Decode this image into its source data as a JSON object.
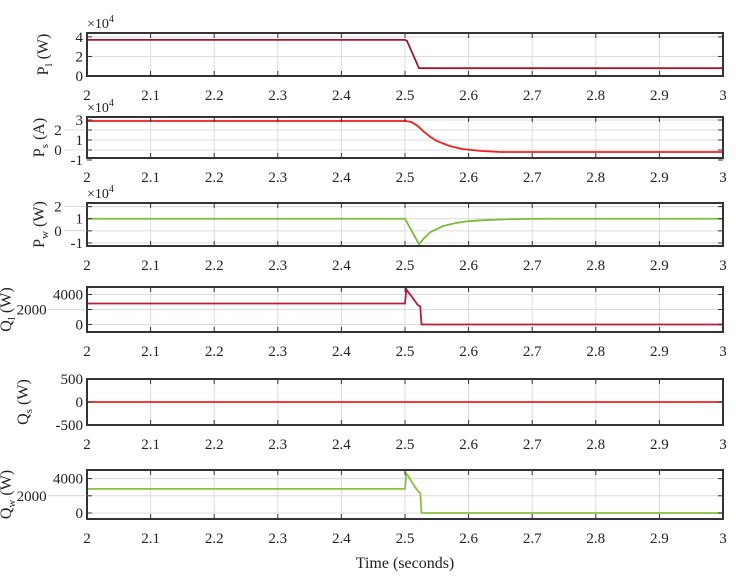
{
  "chart_data": [
    {
      "type": "line",
      "ylabel_main": "P",
      "ylabel_sub": "l",
      "ylabel_unit": "(W)",
      "exponent_base": "×10",
      "exponent_power": "4",
      "ylim": [
        0,
        4.4
      ],
      "yticks": [
        0,
        2,
        4
      ],
      "color": "#a01830",
      "series": [
        {
          "x": [
            2,
            2.5,
            2.503,
            2.522,
            3
          ],
          "y": [
            3.7,
            3.7,
            3.6,
            0.8,
            0.8
          ]
        }
      ]
    },
    {
      "type": "line",
      "ylabel_main": "P",
      "ylabel_sub": "s",
      "ylabel_unit": "(A)",
      "exponent_base": "×10",
      "exponent_power": "4",
      "ylim": [
        -0.8,
        3.3
      ],
      "yticks": [
        -1,
        0,
        1,
        2,
        3
      ],
      "color": "#f02020",
      "series": [
        {
          "x": [
            2,
            2.5,
            2.51,
            2.52,
            2.53,
            2.54,
            2.55,
            2.57,
            2.59,
            2.62,
            2.65,
            3
          ],
          "y": [
            2.9,
            2.9,
            2.8,
            2.4,
            1.8,
            1.3,
            0.9,
            0.4,
            0.1,
            -0.1,
            -0.2,
            -0.2
          ]
        }
      ]
    },
    {
      "type": "line",
      "ylabel_main": "P",
      "ylabel_sub": "w",
      "ylabel_unit": "(W)",
      "exponent_base": "×10",
      "exponent_power": "4",
      "ylim": [
        -1.25,
        2.3
      ],
      "yticks": [
        -1,
        0,
        1,
        2
      ],
      "color": "#7cbb38",
      "series": [
        {
          "x": [
            2,
            2.5,
            2.522,
            2.53,
            2.54,
            2.56,
            2.58,
            2.6,
            2.63,
            2.67,
            2.72,
            3
          ],
          "y": [
            1.0,
            1.0,
            -1.1,
            -0.6,
            -0.1,
            0.4,
            0.65,
            0.8,
            0.9,
            0.97,
            1.0,
            1.0
          ]
        }
      ]
    },
    {
      "type": "line",
      "ylabel_main": "Q",
      "ylabel_sub": "l",
      "ylabel_unit": "(W)",
      "ylim": [
        -1000,
        5000
      ],
      "yticks": [
        0,
        2000,
        4000
      ],
      "color": "#c01838",
      "series": [
        {
          "x": [
            2,
            2.5,
            2.502,
            2.505,
            2.51,
            2.515,
            2.52,
            2.524,
            2.526,
            3
          ],
          "y": [
            2800,
            2800,
            4700,
            4300,
            3800,
            3200,
            2600,
            2400,
            0,
            0
          ]
        }
      ]
    },
    {
      "type": "line",
      "ylabel_main": "Q",
      "ylabel_sub": "s",
      "ylabel_unit": "(W)",
      "ylim": [
        -500,
        500
      ],
      "yticks": [
        -500,
        0,
        500
      ],
      "color": "#f02020",
      "series": [
        {
          "x": [
            2,
            3
          ],
          "y": [
            0,
            0
          ]
        }
      ]
    },
    {
      "type": "line",
      "ylabel_main": "Q",
      "ylabel_sub": "w",
      "ylabel_unit": "(W)",
      "ylim": [
        -700,
        5000
      ],
      "yticks": [
        0,
        2000,
        4000
      ],
      "color": "#88c040",
      "series": [
        {
          "x": [
            2,
            2.5,
            2.502,
            2.505,
            2.51,
            2.515,
            2.52,
            2.524,
            2.526,
            3
          ],
          "y": [
            2800,
            2800,
            4600,
            4300,
            3700,
            3100,
            2600,
            2300,
            0,
            0
          ]
        }
      ]
    }
  ],
  "x_ticks": [
    2,
    2.1,
    2.2,
    2.3,
    2.4,
    2.5,
    2.6,
    2.7,
    2.8,
    2.9,
    3
  ],
  "x_tick_labels": [
    "2",
    "2.1",
    "2.2",
    "2.3",
    "2.4",
    "2.5",
    "2.6",
    "2.7",
    "2.8",
    "2.9",
    "3"
  ],
  "xlim": [
    2,
    3
  ],
  "xlabel": "Time (seconds)",
  "grid": true
}
